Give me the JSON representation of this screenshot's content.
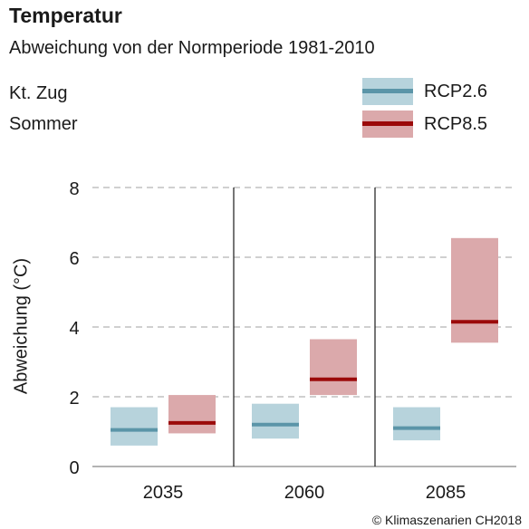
{
  "header": {
    "title": "Temperatur",
    "subtitle": "Abweichung von der Normperiode 1981-2010",
    "region": "Kt. Zug",
    "season": "Sommer"
  },
  "legend": [
    {
      "name": "RCP2.6",
      "band_color": "#b7d3dc",
      "line_color": "#5b95a8"
    },
    {
      "name": "RCP8.5",
      "band_color": "#dba9ab",
      "line_color": "#9b0a0a"
    }
  ],
  "copyright": "© Klimaszenarien CH2018",
  "chart_data": {
    "type": "range-bar",
    "title": "Temperatur",
    "subtitle": "Abweichung von der Normperiode 1981-2010",
    "xlabel": "",
    "ylabel": "Abweichung (°C)",
    "ylim": [
      0,
      8
    ],
    "yticks": [
      0,
      2,
      4,
      6,
      8
    ],
    "grid": true,
    "legend_position": "top-right",
    "categories": [
      "2035",
      "2060",
      "2085"
    ],
    "series": [
      {
        "name": "RCP2.6",
        "band_color": "#b7d3dc",
        "line_color": "#5b95a8",
        "low": [
          0.6,
          0.8,
          0.75
        ],
        "median": [
          1.05,
          1.2,
          1.1
        ],
        "high": [
          1.7,
          1.8,
          1.7
        ]
      },
      {
        "name": "RCP8.5",
        "band_color": "#dba9ab",
        "line_color": "#9b0a0a",
        "low": [
          0.95,
          2.05,
          3.55
        ],
        "median": [
          1.25,
          2.5,
          4.15
        ],
        "high": [
          2.05,
          3.65,
          6.55
        ]
      }
    ]
  }
}
